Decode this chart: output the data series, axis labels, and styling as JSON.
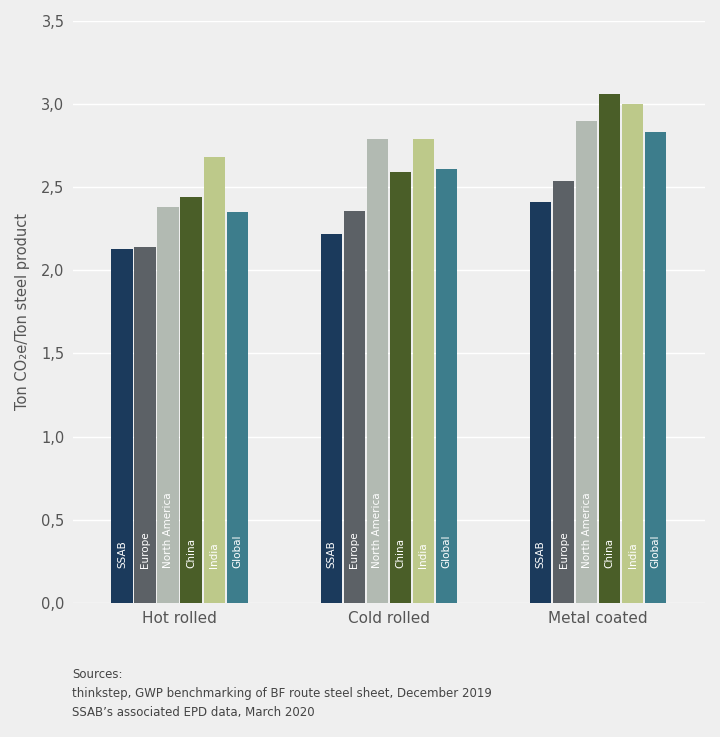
{
  "categories": [
    "Hot rolled",
    "Cold rolled",
    "Metal coated"
  ],
  "series_labels": [
    "SSAB",
    "Europe",
    "North America",
    "China",
    "India",
    "Global"
  ],
  "values": {
    "Hot rolled": [
      2.13,
      2.14,
      2.38,
      2.44,
      2.68,
      2.35
    ],
    "Cold rolled": [
      2.22,
      2.36,
      2.79,
      2.59,
      2.79,
      2.61
    ],
    "Metal coated": [
      2.41,
      2.54,
      2.9,
      3.06,
      3.0,
      2.83
    ]
  },
  "bar_colors": [
    "#1b3a5c",
    "#5c6166",
    "#b2bab2",
    "#4a5e28",
    "#bdc98a",
    "#3d7d8c"
  ],
  "ylabel": "Ton CO₂e/Ton steel product",
  "ylim": [
    0,
    3.5
  ],
  "yticks": [
    0.0,
    0.5,
    1.0,
    1.5,
    2.0,
    2.5,
    3.0,
    3.5
  ],
  "ytick_labels": [
    "0,0",
    "0,5",
    "1,0",
    "1,5",
    "2,0",
    "2,5",
    "3,0",
    "3,5"
  ],
  "background_color": "#efefef",
  "source_text": "Sources:\nthinkstep, GWP benchmarking of BF route steel sheet, December 2019\nSSAB’s associated EPD data, March 2020",
  "bar_label_fontsize": 7.5,
  "bar_label_color": "white",
  "grid_color": "#ffffff",
  "tick_color": "#555555",
  "category_fontsize": 11,
  "ylabel_fontsize": 10.5,
  "source_fontsize": 8.5
}
